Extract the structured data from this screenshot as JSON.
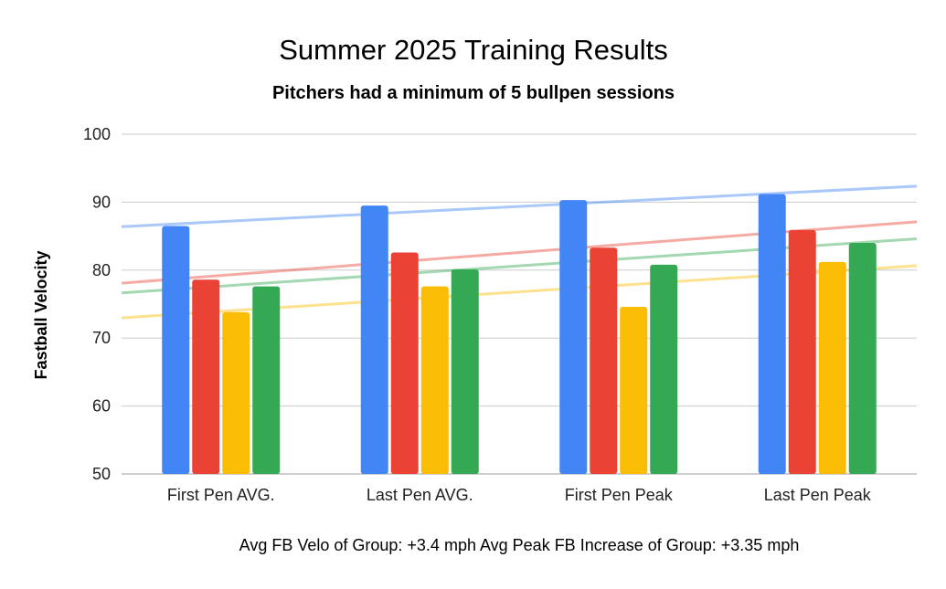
{
  "chart_data": {
    "type": "bar",
    "title": "Summer 2025 Training Results",
    "subtitle": "Pitchers had a minimum of 5 bullpen sessions",
    "ylabel": "Fastball Velocity",
    "xlabel": "",
    "footnote": "Avg FB Velo of Group: +3.4 mph Avg Peak FB Increase of Group: +3.35 mph",
    "categories": [
      "First Pen AVG.",
      "Last Pen AVG.",
      "First Pen Peak",
      "Last Pen Peak"
    ],
    "ylim": [
      50,
      100
    ],
    "yticks": [
      50,
      60,
      70,
      80,
      90,
      100
    ],
    "grid": true,
    "legend": "none",
    "series": [
      {
        "color": "#4285F4",
        "values": [
          86.5,
          89.5,
          90.3,
          91.2
        ]
      },
      {
        "color": "#EA4335",
        "values": [
          78.6,
          82.6,
          83.3,
          85.9
        ]
      },
      {
        "color": "#FBBC04",
        "values": [
          73.8,
          77.6,
          74.6,
          81.2
        ]
      },
      {
        "color": "#34A853",
        "values": [
          77.6,
          80.1,
          80.8,
          84.0
        ]
      }
    ],
    "trendlines": true
  }
}
